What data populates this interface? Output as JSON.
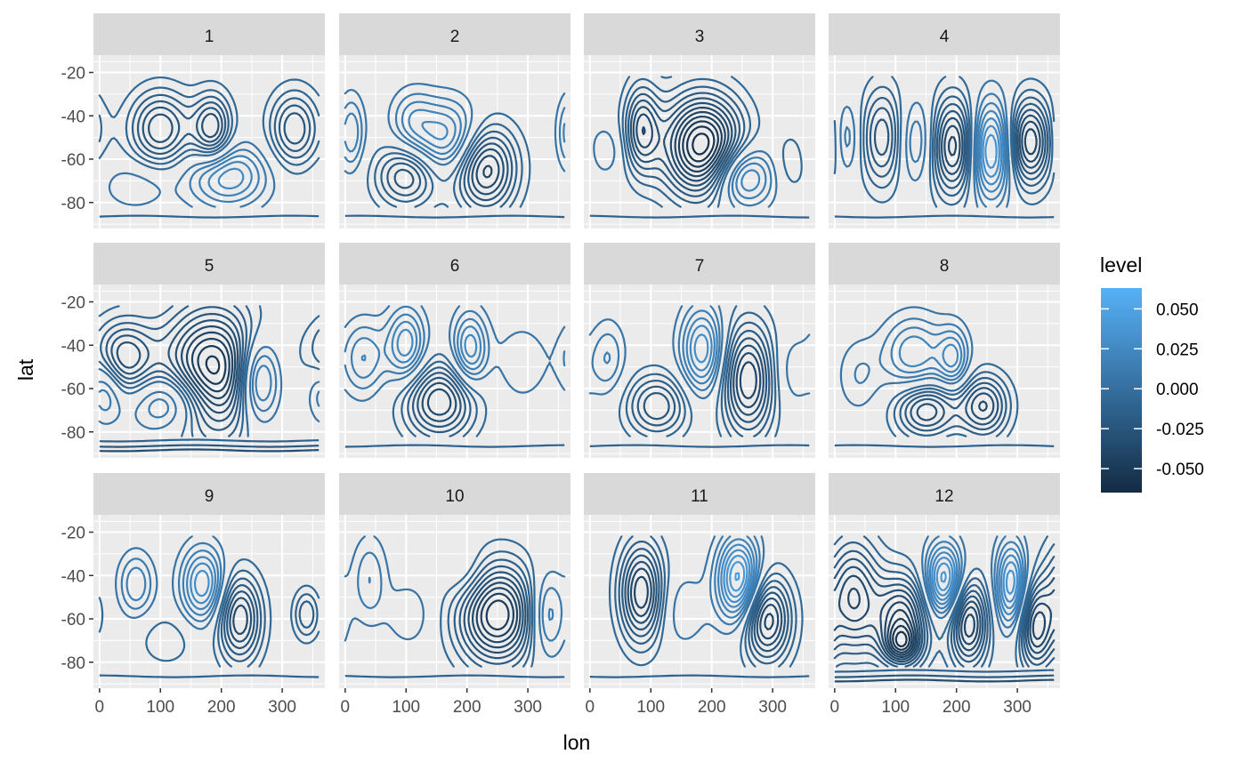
{
  "chart_data": {
    "type": "contour",
    "facet_variable": "month",
    "facets": [
      "1",
      "2",
      "3",
      "4",
      "5",
      "6",
      "7",
      "8",
      "9",
      "10",
      "11",
      "12"
    ],
    "ncol": 4,
    "nrow": 3,
    "xlabel": "lon",
    "ylabel": "lat",
    "xlim": [
      -10,
      370
    ],
    "ylim": [
      -92,
      -12
    ],
    "x_ticks": [
      0,
      100,
      200,
      300
    ],
    "y_ticks": [
      -20,
      -40,
      -60,
      -80
    ],
    "x_tick_labels": [
      "0",
      "100",
      "200",
      "300"
    ],
    "y_tick_labels": [
      "-20",
      "-40",
      "-60",
      "-80"
    ],
    "grid": true,
    "legend": {
      "title": "level",
      "position": "right",
      "range": [
        -0.065,
        0.063
      ],
      "ticks": [
        0.05,
        0.025,
        0.0,
        -0.025,
        -0.05
      ],
      "tick_labels": [
        "0.050",
        "0.025",
        "0.000",
        "-0.025",
        "-0.050"
      ],
      "color_low": "#132B43",
      "color_high": "#56B1F7"
    },
    "panels": [
      {
        "facet": "1",
        "features": [
          {
            "lon": 100,
            "lat": -46,
            "amp": -0.035,
            "rx": 35,
            "ry": 12
          },
          {
            "lon": 185,
            "lat": -46,
            "amp": -0.035,
            "rx": 22,
            "ry": 11
          },
          {
            "lon": 320,
            "lat": -46,
            "amp": -0.03,
            "rx": 28,
            "ry": 12
          },
          {
            "lon": 210,
            "lat": -68,
            "amp": 0.03,
            "rx": 45,
            "ry": 10
          },
          {
            "lon": 60,
            "lat": -72,
            "amp": 0.01,
            "rx": 40,
            "ry": 8
          }
        ]
      },
      {
        "facet": "2",
        "features": [
          {
            "lon": 230,
            "lat": -64,
            "amp": -0.045,
            "rx": 35,
            "ry": 14
          },
          {
            "lon": 100,
            "lat": -68,
            "amp": -0.03,
            "rx": 35,
            "ry": 10
          },
          {
            "lon": 170,
            "lat": -50,
            "amp": 0.03,
            "rx": 40,
            "ry": 12
          },
          {
            "lon": 10,
            "lat": -48,
            "amp": 0.02,
            "rx": 15,
            "ry": 12
          },
          {
            "lon": 110,
            "lat": -42,
            "amp": 0.015,
            "rx": 25,
            "ry": 10
          }
        ]
      },
      {
        "facet": "3",
        "features": [
          {
            "lon": 185,
            "lat": -54,
            "amp": -0.065,
            "rx": 45,
            "ry": 16
          },
          {
            "lon": 85,
            "lat": -46,
            "amp": -0.035,
            "rx": 20,
            "ry": 14
          },
          {
            "lon": 250,
            "lat": -68,
            "amp": 0.035,
            "rx": 35,
            "ry": 10
          },
          {
            "lon": 25,
            "lat": -56,
            "amp": 0.01,
            "rx": 20,
            "ry": 8
          },
          {
            "lon": 330,
            "lat": -62,
            "amp": -0.01,
            "rx": 20,
            "ry": 10
          }
        ]
      },
      {
        "facet": "4",
        "features": [
          {
            "lon": 80,
            "lat": -50,
            "amp": -0.03,
            "rx": 25,
            "ry": 16
          },
          {
            "lon": 195,
            "lat": -54,
            "amp": -0.045,
            "rx": 28,
            "ry": 16
          },
          {
            "lon": 320,
            "lat": -52,
            "amp": -0.045,
            "rx": 25,
            "ry": 14
          },
          {
            "lon": 255,
            "lat": -56,
            "amp": 0.045,
            "rx": 25,
            "ry": 16
          },
          {
            "lon": 135,
            "lat": -52,
            "amp": 0.02,
            "rx": 25,
            "ry": 14
          },
          {
            "lon": 20,
            "lat": -50,
            "amp": 0.015,
            "rx": 15,
            "ry": 12
          }
        ]
      },
      {
        "facet": "5",
        "features": [
          {
            "lon": 185,
            "lat": -52,
            "amp": -0.06,
            "rx": 55,
            "ry": 20
          },
          {
            "lon": 40,
            "lat": -46,
            "amp": -0.035,
            "rx": 35,
            "ry": 12
          },
          {
            "lon": 120,
            "lat": -66,
            "amp": 0.03,
            "rx": 45,
            "ry": 10
          },
          {
            "lon": 260,
            "lat": -56,
            "amp": 0.04,
            "rx": 25,
            "ry": 14
          },
          {
            "lon": 10,
            "lat": -60,
            "amp": 0.02,
            "rx": 20,
            "ry": 10
          }
        ]
      },
      {
        "facet": "6",
        "features": [
          {
            "lon": 155,
            "lat": -66,
            "amp": -0.04,
            "rx": 40,
            "ry": 12
          },
          {
            "lon": 100,
            "lat": -40,
            "amp": 0.03,
            "rx": 22,
            "ry": 12
          },
          {
            "lon": 205,
            "lat": -42,
            "amp": 0.03,
            "rx": 20,
            "ry": 12
          },
          {
            "lon": 30,
            "lat": -46,
            "amp": 0.02,
            "rx": 25,
            "ry": 12
          },
          {
            "lon": 290,
            "lat": -48,
            "amp": 0.01,
            "rx": 30,
            "ry": 12
          }
        ]
      },
      {
        "facet": "7",
        "features": [
          {
            "lon": 260,
            "lat": -56,
            "amp": -0.045,
            "rx": 30,
            "ry": 18
          },
          {
            "lon": 110,
            "lat": -68,
            "amp": -0.03,
            "rx": 35,
            "ry": 10
          },
          {
            "lon": 185,
            "lat": -42,
            "amp": 0.035,
            "rx": 25,
            "ry": 14
          },
          {
            "lon": 30,
            "lat": -46,
            "amp": 0.015,
            "rx": 20,
            "ry": 12
          },
          {
            "lon": 330,
            "lat": -52,
            "amp": 0.01,
            "rx": 25,
            "ry": 12
          }
        ]
      },
      {
        "facet": "8",
        "features": [
          {
            "lon": 150,
            "lat": -70,
            "amp": -0.035,
            "rx": 35,
            "ry": 9
          },
          {
            "lon": 245,
            "lat": -68,
            "amp": -0.035,
            "rx": 28,
            "ry": 10
          },
          {
            "lon": 130,
            "lat": -44,
            "amp": 0.025,
            "rx": 35,
            "ry": 12
          },
          {
            "lon": 195,
            "lat": -46,
            "amp": 0.025,
            "rx": 18,
            "ry": 10
          },
          {
            "lon": 40,
            "lat": -54,
            "amp": 0.01,
            "rx": 25,
            "ry": 12
          }
        ]
      },
      {
        "facet": "9",
        "features": [
          {
            "lon": 230,
            "lat": -60,
            "amp": -0.04,
            "rx": 25,
            "ry": 14
          },
          {
            "lon": 170,
            "lat": -44,
            "amp": 0.035,
            "rx": 25,
            "ry": 12
          },
          {
            "lon": 60,
            "lat": -44,
            "amp": 0.02,
            "rx": 20,
            "ry": 10
          },
          {
            "lon": 340,
            "lat": -58,
            "amp": -0.02,
            "rx": 15,
            "ry": 8
          },
          {
            "lon": 110,
            "lat": -70,
            "amp": -0.01,
            "rx": 30,
            "ry": 8
          }
        ]
      },
      {
        "facet": "10",
        "features": [
          {
            "lon": 250,
            "lat": -58,
            "amp": -0.055,
            "rx": 45,
            "ry": 16
          },
          {
            "lon": 330,
            "lat": -58,
            "amp": 0.025,
            "rx": 22,
            "ry": 14
          },
          {
            "lon": 40,
            "lat": -42,
            "amp": 0.015,
            "rx": 20,
            "ry": 14
          },
          {
            "lon": 105,
            "lat": -58,
            "amp": 0.01,
            "rx": 25,
            "ry": 10
          },
          {
            "lon": 200,
            "lat": -40,
            "amp": 0.01,
            "rx": 25,
            "ry": 10
          }
        ]
      },
      {
        "facet": "11",
        "features": [
          {
            "lon": 85,
            "lat": -48,
            "amp": -0.045,
            "rx": 25,
            "ry": 16
          },
          {
            "lon": 290,
            "lat": -60,
            "amp": -0.045,
            "rx": 28,
            "ry": 14
          },
          {
            "lon": 245,
            "lat": -42,
            "amp": 0.05,
            "rx": 25,
            "ry": 14
          },
          {
            "lon": 150,
            "lat": -56,
            "amp": 0.01,
            "rx": 30,
            "ry": 12
          }
        ]
      },
      {
        "facet": "12",
        "features": [
          {
            "lon": 30,
            "lat": -50,
            "amp": -0.04,
            "rx": 30,
            "ry": 18
          },
          {
            "lon": 110,
            "lat": -60,
            "amp": -0.045,
            "rx": 30,
            "ry": 14
          },
          {
            "lon": 220,
            "lat": -62,
            "amp": -0.045,
            "rx": 22,
            "ry": 14
          },
          {
            "lon": 330,
            "lat": -64,
            "amp": -0.04,
            "rx": 20,
            "ry": 14
          },
          {
            "lon": 180,
            "lat": -42,
            "amp": 0.045,
            "rx": 22,
            "ry": 12
          },
          {
            "lon": 290,
            "lat": -44,
            "amp": 0.04,
            "rx": 18,
            "ry": 14
          },
          {
            "lon": 110,
            "lat": -72,
            "amp": -0.03,
            "rx": 20,
            "ry": 6
          }
        ]
      }
    ],
    "contour_levels": [
      -0.06,
      -0.055,
      -0.05,
      -0.045,
      -0.04,
      -0.035,
      -0.03,
      -0.025,
      -0.02,
      -0.015,
      -0.01,
      -0.005,
      0.005,
      0.01,
      0.015,
      0.02,
      0.025,
      0.03,
      0.035,
      0.04,
      0.045,
      0.05,
      0.055,
      0.06
    ],
    "south_bands": [
      -84,
      -86.5,
      -88.5
    ]
  }
}
